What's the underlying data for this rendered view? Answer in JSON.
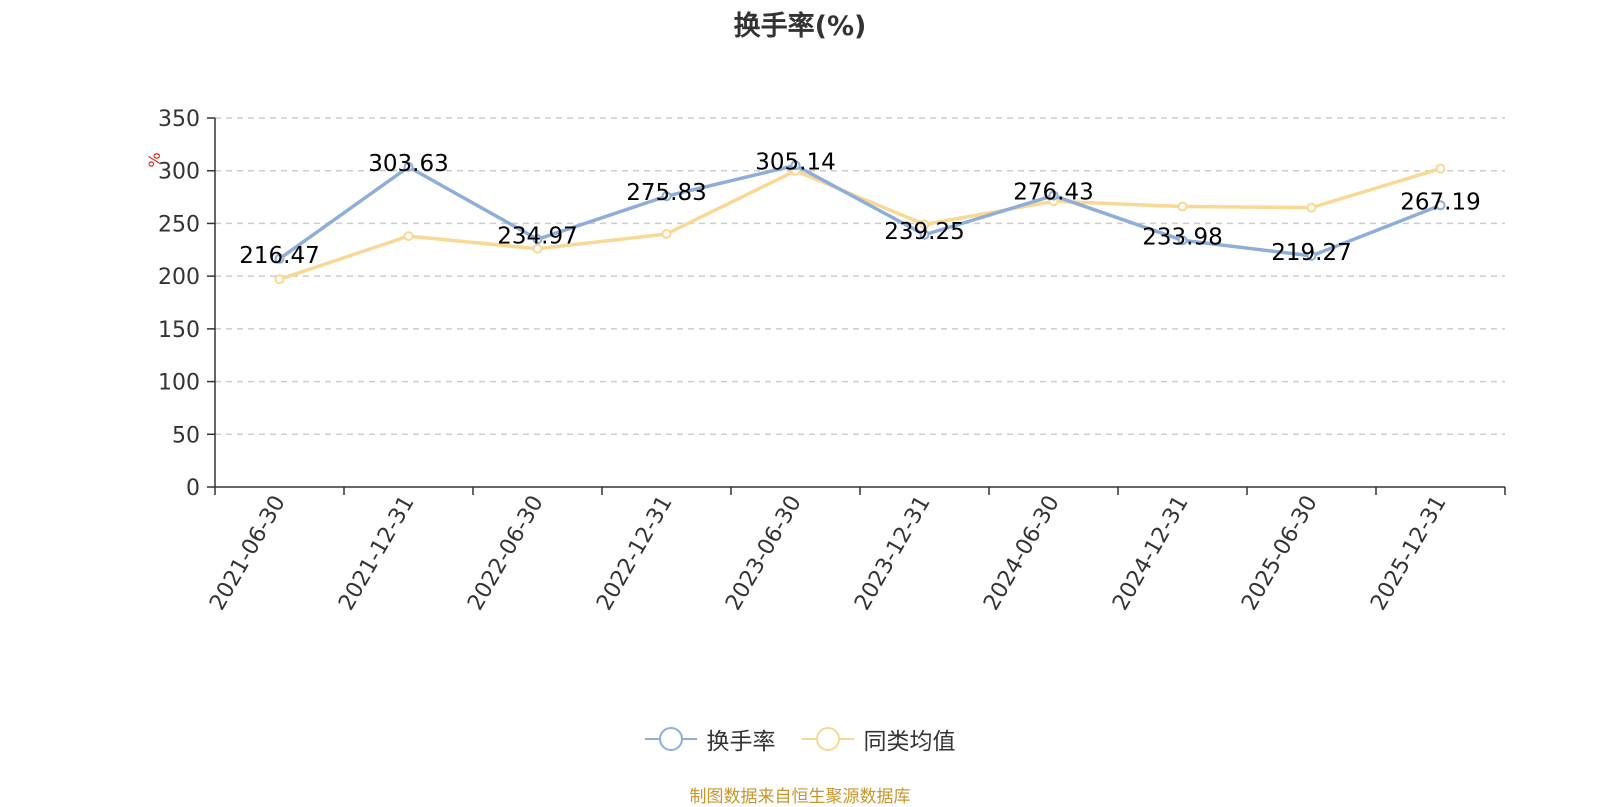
{
  "title": "换手率(%)",
  "source_note": "制图数据来自恒生聚源数据库",
  "chart_data": {
    "type": "line",
    "ylabel": "%",
    "ylim": [
      0,
      350
    ],
    "yticks": [
      0,
      50,
      100,
      150,
      200,
      250,
      300,
      350
    ],
    "grid": true,
    "legend_position": "bottom-center",
    "categories": [
      "2021-06-30",
      "2021-12-31",
      "2022-06-30",
      "2022-12-31",
      "2023-06-30",
      "2023-12-31",
      "2024-06-30",
      "2024-12-31",
      "2025-06-30",
      "2025-12-31"
    ],
    "series": [
      {
        "name": "换手率",
        "color": "#8eaed9",
        "values": [
          216.47,
          303.63,
          234.97,
          275.83,
          305.14,
          239.25,
          276.43,
          233.98,
          219.27,
          267.19
        ],
        "labels": [
          "216.47",
          "303.63",
          "234.97",
          "275.83",
          "305.14",
          "239.25",
          "276.43",
          "233.98",
          "219.27",
          "267.19"
        ]
      },
      {
        "name": "同类均值",
        "color": "#f9d895",
        "values": [
          197,
          238,
          226,
          240,
          300,
          249,
          271,
          266,
          265,
          302
        ]
      }
    ]
  }
}
